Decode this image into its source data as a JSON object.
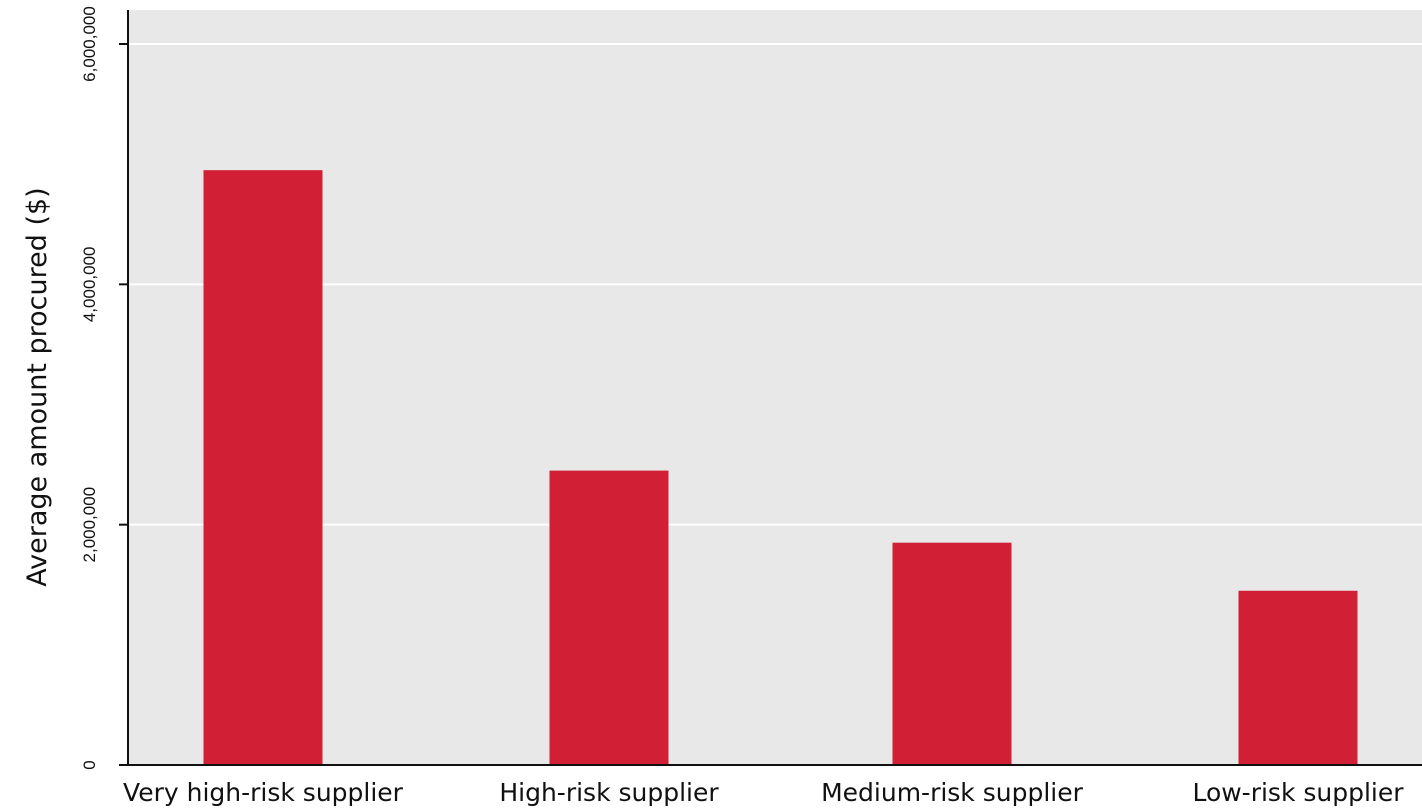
{
  "chart_data": {
    "type": "bar",
    "title": "",
    "xlabel": "",
    "ylabel": "Average amount procured ($)",
    "categories": [
      "Very high-risk supplier",
      "High-risk supplier",
      "Medium-risk supplier",
      "Low-risk supplier"
    ],
    "values": [
      4950000,
      2450000,
      1850000,
      1450000
    ],
    "ylim": [
      0,
      6000000
    ],
    "yticks": [
      0,
      2000000,
      4000000,
      6000000
    ],
    "ytick_labels": [
      "0",
      "2,000,000",
      "4,000,000",
      "6,000,000"
    ],
    "grid": true,
    "legend": "none",
    "colors": {
      "bar": "#d11f35",
      "plot_background": "#e8e8e8",
      "gridline": "#ffffff",
      "axis": "#111111"
    }
  }
}
